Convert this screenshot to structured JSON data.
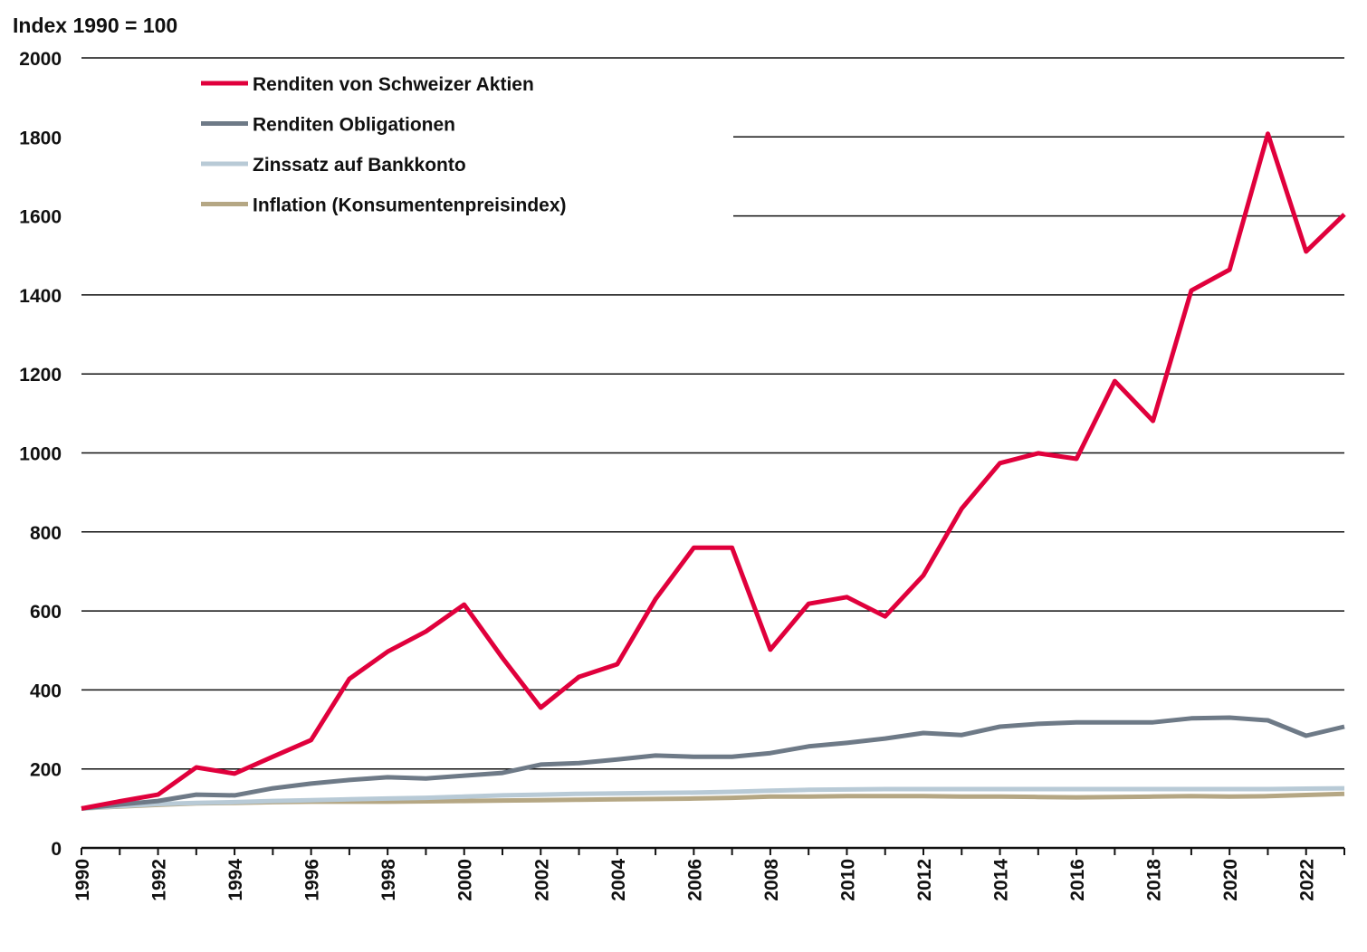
{
  "chart_data": {
    "type": "line",
    "title": "Index 1990 = 100",
    "xlabel": "",
    "ylabel": "",
    "xlim": [
      1990,
      2023
    ],
    "ylim": [
      0,
      2000
    ],
    "y_ticks": [
      0,
      200,
      400,
      600,
      800,
      1000,
      1200,
      1400,
      1600,
      1800,
      2000
    ],
    "x_ticks": [
      1990,
      1992,
      1994,
      1996,
      1998,
      2000,
      2002,
      2004,
      2006,
      2008,
      2010,
      2012,
      2014,
      2016,
      2018,
      2020,
      2022
    ],
    "grid": "horizontal",
    "legend_position": "top-left",
    "x": [
      1990,
      1991,
      1992,
      1993,
      1994,
      1995,
      1996,
      1997,
      1998,
      1999,
      2000,
      2001,
      2002,
      2003,
      2004,
      2005,
      2006,
      2007,
      2008,
      2009,
      2010,
      2011,
      2012,
      2013,
      2014,
      2015,
      2016,
      2017,
      2018,
      2019,
      2020,
      2021,
      2022,
      2023
    ],
    "series": [
      {
        "name": "Renditen von Schweizer Aktien",
        "color": "#e0003c",
        "values": [
          100,
          118,
          135,
          204,
          188,
          231,
          273,
          428,
          497,
          548,
          616,
          481,
          355,
          433,
          465,
          630,
          760,
          760,
          502,
          618,
          635,
          586,
          690,
          859,
          974,
          999,
          985,
          1182,
          1081,
          1411,
          1464,
          1808,
          1510,
          1604
        ]
      },
      {
        "name": "Renditen Obligationen",
        "color": "#6e7a87",
        "values": [
          100,
          110,
          119,
          135,
          133,
          151,
          163,
          172,
          179,
          176,
          183,
          190,
          211,
          215,
          224,
          234,
          231,
          231,
          240,
          257,
          266,
          277,
          291,
          286,
          307,
          314,
          318,
          318,
          318,
          328,
          330,
          323,
          284,
          307
        ]
      },
      {
        "name": "Zinssatz auf Bankkonto",
        "color": "#b8cad6",
        "values": [
          100,
          106,
          111,
          114,
          116,
          119,
          121,
          123,
          125,
          127,
          130,
          133,
          135,
          137,
          138,
          139,
          140,
          142,
          145,
          147,
          148,
          149,
          149,
          149,
          149,
          149,
          149,
          149,
          149,
          149,
          149,
          149,
          150,
          151
        ]
      },
      {
        "name": "Inflation (Konsumentenpreisindex)",
        "color": "#b5a784",
        "values": [
          100,
          105,
          109,
          113,
          114,
          116,
          117,
          117,
          117,
          118,
          119,
          120,
          121,
          122,
          123,
          124,
          125,
          127,
          130,
          130,
          131,
          131,
          131,
          130,
          130,
          129,
          128,
          129,
          130,
          131,
          130,
          131,
          134,
          137
        ]
      }
    ]
  }
}
